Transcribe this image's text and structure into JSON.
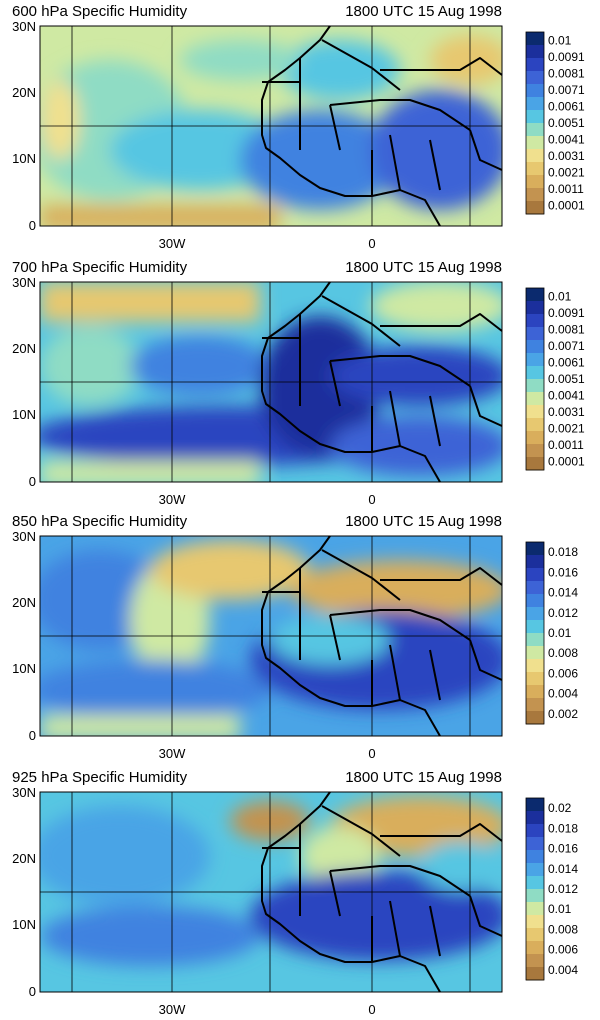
{
  "figure": {
    "panels": [
      {
        "title": "600 hPa Specific Humidity",
        "time": "1800 UTC 15 Aug 1998",
        "lat_labels": [
          "30N",
          "20N",
          "10N",
          "0"
        ],
        "lon_labels": [
          "30W",
          "0"
        ],
        "colorbar": {
          "labels": [
            "0.01",
            "0.0091",
            "0.0081",
            "0.0071",
            "0.0061",
            "0.0051",
            "0.0041",
            "0.0031",
            "0.0021",
            "0.0011",
            "0.0001"
          ],
          "colors": [
            "#0b2a6e",
            "#1b2f9c",
            "#2b44c0",
            "#3d63d6",
            "#3f82e0",
            "#4aa4e6",
            "#57c6e2",
            "#8fdcc4",
            "#cfe9a3",
            "#f0e08e",
            "#e7c870",
            "#d9ae5c",
            "#c39350",
            "#a8783d"
          ]
        },
        "land_level": [
          0.55,
          0.6,
          0.5,
          0.35
        ],
        "ocean_level": [
          0.45,
          0.5,
          0.45,
          0.35
        ]
      },
      {
        "title": "700 hPa Specific Humidity",
        "time": "1800 UTC 15 Aug 1998",
        "lat_labels": [
          "30N",
          "20N",
          "10N",
          "0"
        ],
        "lon_labels": [
          "30W",
          "0"
        ],
        "colorbar": {
          "labels": [
            "0.01",
            "0.0091",
            "0.0081",
            "0.0071",
            "0.0061",
            "0.0051",
            "0.0041",
            "0.0031",
            "0.0021",
            "0.0011",
            "0.0001"
          ],
          "colors": [
            "#0b2a6e",
            "#1b2f9c",
            "#2b44c0",
            "#3d63d6",
            "#3f82e0",
            "#4aa4e6",
            "#57c6e2",
            "#8fdcc4",
            "#cfe9a3",
            "#f0e08e",
            "#e7c870",
            "#d9ae5c",
            "#c39350",
            "#a8783d"
          ]
        }
      },
      {
        "title": "850 hPa Specific Humidity",
        "time": "1800 UTC 15 Aug 1998",
        "lat_labels": [
          "30N",
          "20N",
          "10N",
          "0"
        ],
        "lon_labels": [
          "30W",
          "0"
        ],
        "colorbar": {
          "labels": [
            "0.018",
            "0.016",
            "0.014",
            "0.012",
            "0.01",
            "0.008",
            "0.006",
            "0.004",
            "0.002"
          ],
          "colors": [
            "#0b2a6e",
            "#1b2f9c",
            "#2b44c0",
            "#3d63d6",
            "#3f82e0",
            "#4aa4e6",
            "#57c6e2",
            "#8fdcc4",
            "#cfe9a3",
            "#f0e08e",
            "#e7c870",
            "#d9ae5c",
            "#c39350",
            "#a8783d"
          ]
        }
      },
      {
        "title": "925 hPa Specific Humidity",
        "time": "1800 UTC 15 Aug 1998",
        "lat_labels": [
          "30N",
          "20N",
          "10N",
          "0"
        ],
        "lon_labels": [
          "30W",
          "0"
        ],
        "colorbar": {
          "labels": [
            "0.02",
            "0.018",
            "0.016",
            "0.014",
            "0.012",
            "0.01",
            "0.008",
            "0.006",
            "0.004"
          ],
          "colors": [
            "#0b2a6e",
            "#1b2f9c",
            "#2b44c0",
            "#3d63d6",
            "#3f82e0",
            "#4aa4e6",
            "#57c6e2",
            "#8fdcc4",
            "#cfe9a3",
            "#f0e08e",
            "#e7c870",
            "#d9ae5c",
            "#c39350",
            "#a8783d"
          ]
        }
      }
    ]
  }
}
